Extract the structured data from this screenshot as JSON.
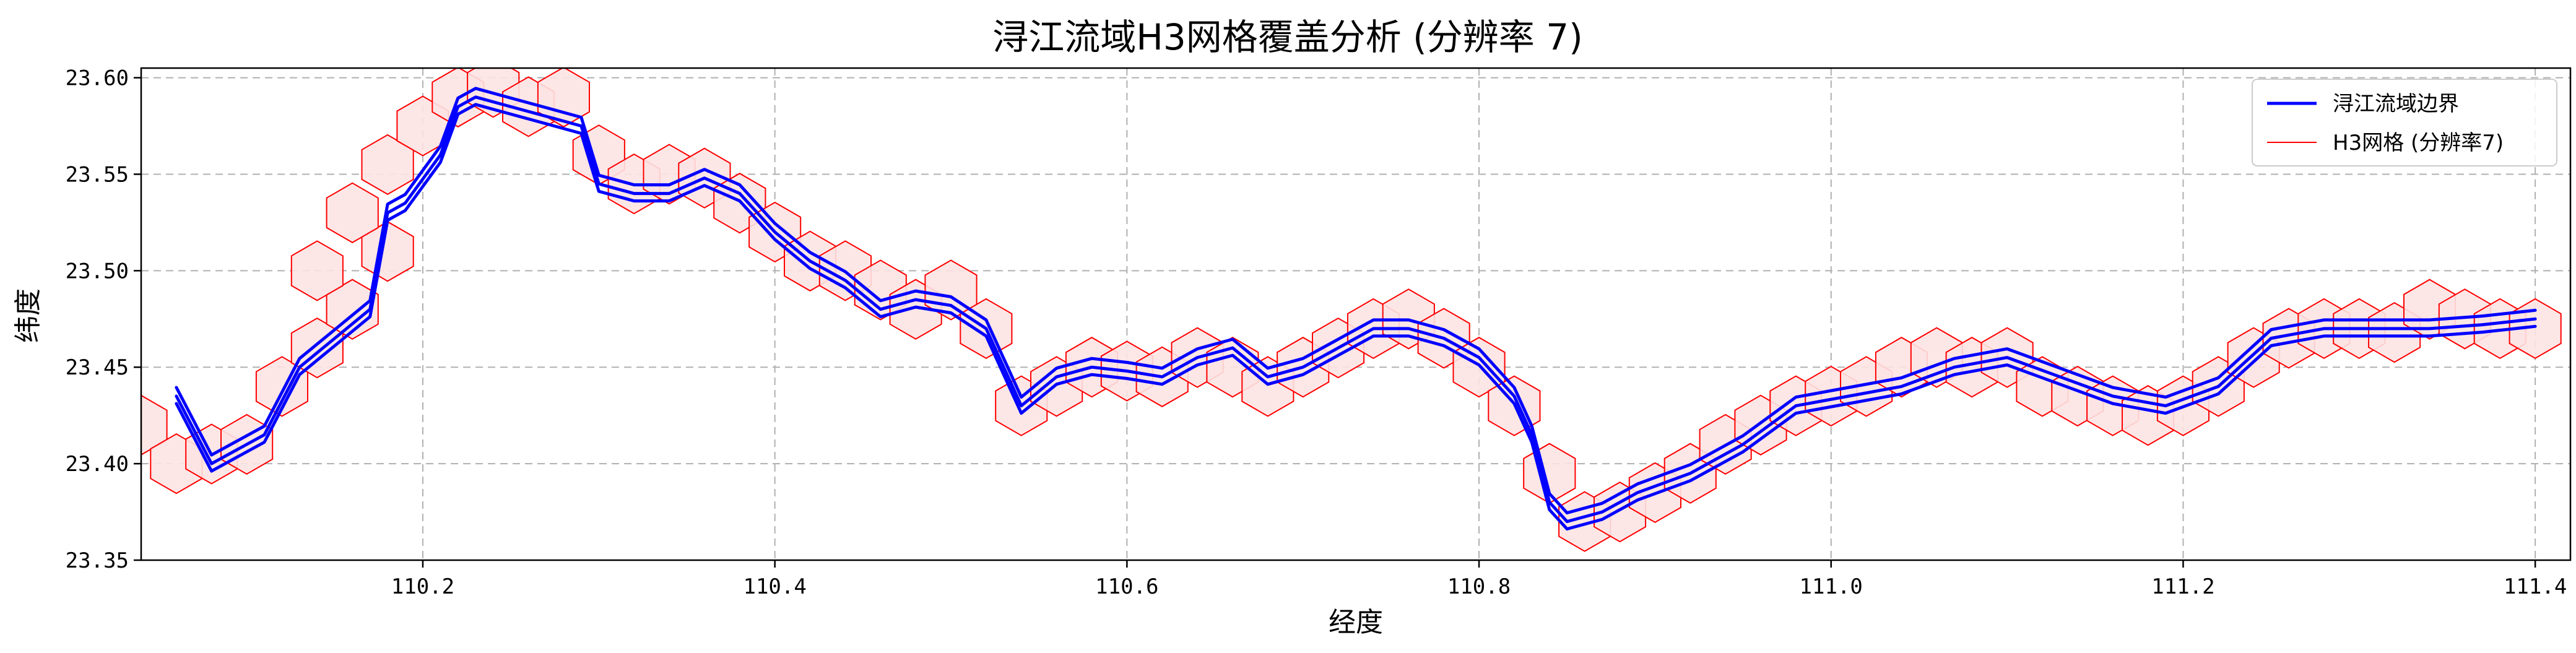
{
  "chart_data": {
    "type": "line",
    "title": "浔江流域H3网格覆盖分析 (分辨率 7)",
    "xlabel": "经度",
    "ylabel": "纬度",
    "xlim": [
      110.04,
      111.42
    ],
    "ylim": [
      23.35,
      23.605
    ],
    "x_ticks": [
      110.2,
      110.4,
      110.6,
      110.8,
      111.0,
      111.2,
      111.4
    ],
    "x_tick_labels": [
      "110.2",
      "110.4",
      "110.6",
      "110.8",
      "111.0",
      "111.2",
      "111.4"
    ],
    "y_ticks": [
      23.35,
      23.4,
      23.45,
      23.5,
      23.55,
      23.6
    ],
    "y_tick_labels": [
      "23.35",
      "23.40",
      "23.45",
      "23.50",
      "23.55",
      "23.60"
    ],
    "grid": true,
    "legend_position": "top-right",
    "colors": {
      "boundary": "#0000ff",
      "hexagon_edge": "#ff0000",
      "hexagon_fill": "#fde3e3"
    },
    "series": [
      {
        "name": "浔江流域边界",
        "kind": "line",
        "x": [
          110.06,
          110.08,
          110.11,
          110.13,
          110.15,
          110.17,
          110.18,
          110.19,
          110.21,
          110.22,
          110.23,
          110.25,
          110.27,
          110.29,
          110.3,
          110.32,
          110.34,
          110.36,
          110.38,
          110.4,
          110.42,
          110.44,
          110.46,
          110.48,
          110.5,
          110.52,
          110.54,
          110.56,
          110.58,
          110.6,
          110.62,
          110.64,
          110.66,
          110.68,
          110.7,
          110.72,
          110.74,
          110.76,
          110.78,
          110.8,
          110.82,
          110.83,
          110.84,
          110.85,
          110.87,
          110.89,
          110.92,
          110.95,
          110.98,
          111.01,
          111.04,
          111.07,
          111.1,
          111.13,
          111.16,
          111.19,
          111.22,
          111.25,
          111.28,
          111.31,
          111.34,
          111.37,
          111.4
        ],
        "y": [
          23.435,
          23.4,
          23.415,
          23.45,
          23.465,
          23.48,
          23.53,
          23.535,
          23.56,
          23.585,
          23.59,
          23.585,
          23.58,
          23.575,
          23.545,
          23.54,
          23.54,
          23.548,
          23.54,
          23.52,
          23.505,
          23.495,
          23.48,
          23.485,
          23.482,
          23.47,
          23.43,
          23.445,
          23.45,
          23.448,
          23.445,
          23.455,
          23.46,
          23.445,
          23.45,
          23.46,
          23.47,
          23.47,
          23.465,
          23.455,
          23.435,
          23.415,
          23.38,
          23.37,
          23.375,
          23.385,
          23.395,
          23.41,
          23.43,
          23.435,
          23.44,
          23.45,
          23.455,
          23.445,
          23.435,
          23.43,
          23.44,
          23.465,
          23.47,
          23.47,
          23.47,
          23.472,
          23.475
        ]
      },
      {
        "name": "H3网格 (分辨率7)",
        "kind": "hexagons",
        "centers_x": [
          110.04,
          110.06,
          110.08,
          110.1,
          110.12,
          110.14,
          110.16,
          110.18,
          110.14,
          110.16,
          110.18,
          110.2,
          110.22,
          110.24,
          110.26,
          110.28,
          110.3,
          110.32,
          110.34,
          110.36,
          110.38,
          110.4,
          110.42,
          110.44,
          110.46,
          110.48,
          110.5,
          110.52,
          110.54,
          110.56,
          110.58,
          110.6,
          110.62,
          110.64,
          110.66,
          110.68,
          110.7,
          110.72,
          110.74,
          110.76,
          110.78,
          110.8,
          110.82,
          110.84,
          110.86,
          110.88,
          110.9,
          110.92,
          110.94,
          110.96,
          110.98,
          111.0,
          111.02,
          111.04,
          111.06,
          111.08,
          111.1,
          111.12,
          111.14,
          111.16,
          111.18,
          111.2,
          111.22,
          111.24,
          111.26,
          111.28,
          111.3,
          111.32,
          111.34,
          111.36,
          111.38,
          111.4
        ],
        "centers_y": [
          23.42,
          23.4,
          23.405,
          23.41,
          23.44,
          23.46,
          23.48,
          23.51,
          23.5,
          23.53,
          23.555,
          23.575,
          23.59,
          23.595,
          23.585,
          23.59,
          23.56,
          23.545,
          23.55,
          23.548,
          23.535,
          23.52,
          23.505,
          23.5,
          23.49,
          23.48,
          23.49,
          23.47,
          23.43,
          23.44,
          23.45,
          23.448,
          23.445,
          23.455,
          23.45,
          23.44,
          23.45,
          23.46,
          23.47,
          23.475,
          23.465,
          23.45,
          23.43,
          23.395,
          23.37,
          23.375,
          23.385,
          23.395,
          23.41,
          23.42,
          23.43,
          23.435,
          23.44,
          23.45,
          23.455,
          23.45,
          23.455,
          23.44,
          23.435,
          23.43,
          23.425,
          23.43,
          23.44,
          23.455,
          23.465,
          23.47,
          23.47,
          23.468,
          23.48,
          23.475,
          23.47,
          23.47
        ]
      }
    ]
  }
}
